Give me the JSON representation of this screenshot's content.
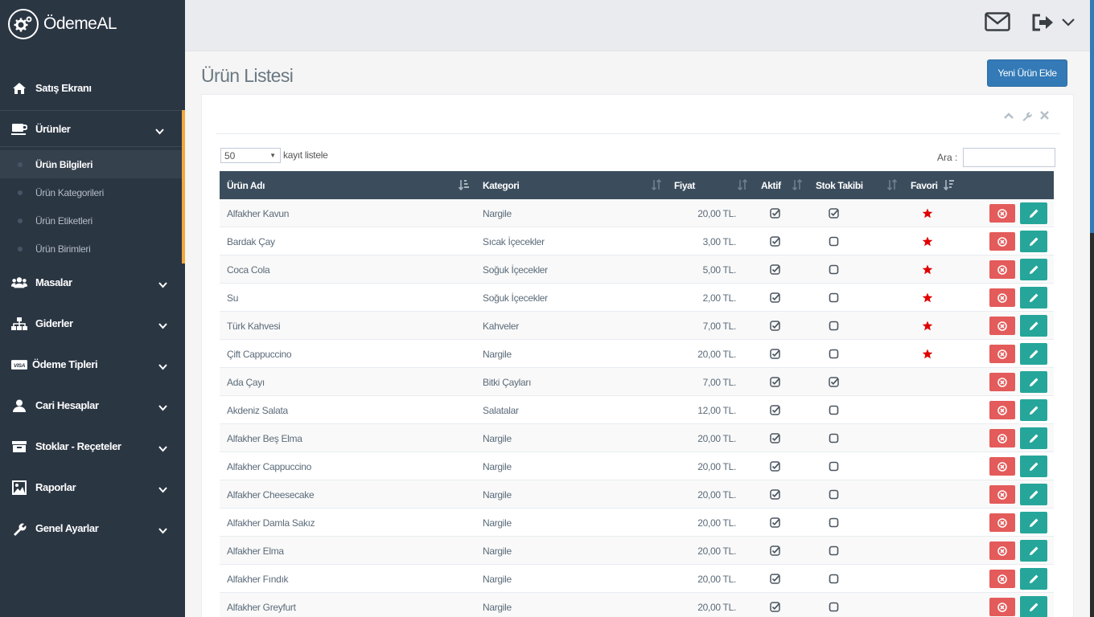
{
  "brand": {
    "name": "ÖdemeAL"
  },
  "sidebar": {
    "items": [
      {
        "label": "Satış Ekranı",
        "icon": "home-icon"
      },
      {
        "label": "Ürünler",
        "icon": "coffee-icon"
      },
      {
        "label": "Masalar",
        "icon": "users-icon"
      },
      {
        "label": "Giderler",
        "icon": "sitemap-icon"
      },
      {
        "label": "Ödeme Tipleri",
        "icon": "visa-icon"
      },
      {
        "label": "Cari Hesaplar",
        "icon": "user-icon"
      },
      {
        "label": "Stoklar - Reçeteler",
        "icon": "archive-icon"
      },
      {
        "label": "Raporlar",
        "icon": "image-icon"
      },
      {
        "label": "Genel Ayarlar",
        "icon": "wrench-icon"
      }
    ],
    "subitems": [
      {
        "label": "Ürün Bilgileri",
        "active": true
      },
      {
        "label": "Ürün Kategorileri",
        "active": false
      },
      {
        "label": "Ürün Etiketleri",
        "active": false
      },
      {
        "label": "Ürün Birimleri",
        "active": false
      }
    ],
    "accent_color": "#f3a83b"
  },
  "main": {
    "title": "Ürün Listesi",
    "new_button": "Yeni Ürün Ekle",
    "length_value": "50",
    "length_label": "kayıt listele",
    "search_label": "Ara :",
    "search_value": ""
  },
  "table": {
    "columns": [
      "Ürün Adı",
      "Kategori",
      "Fiyat",
      "Aktif",
      "Stok Takibi",
      "Favori"
    ],
    "rows": [
      {
        "name": "Alfakher Kavun",
        "category": "Nargile",
        "price": "20,00 TL.",
        "aktif": true,
        "stok": true,
        "favori": true
      },
      {
        "name": "Bardak Çay",
        "category": "Sıcak İçecekler",
        "price": "3,00 TL.",
        "aktif": true,
        "stok": false,
        "favori": true
      },
      {
        "name": "Coca Cola",
        "category": "Soğuk İçecekler",
        "price": "5,00 TL.",
        "aktif": true,
        "stok": false,
        "favori": true
      },
      {
        "name": "Su",
        "category": "Soğuk İçecekler",
        "price": "2,00 TL.",
        "aktif": true,
        "stok": false,
        "favori": true
      },
      {
        "name": "Türk Kahvesi",
        "category": "Kahveler",
        "price": "7,00 TL.",
        "aktif": true,
        "stok": false,
        "favori": true
      },
      {
        "name": "Çift Cappuccino",
        "category": "Nargile",
        "price": "20,00 TL.",
        "aktif": true,
        "stok": false,
        "favori": true
      },
      {
        "name": "Ada Çayı",
        "category": "Bitki Çayları",
        "price": "7,00 TL.",
        "aktif": true,
        "stok": true,
        "favori": false
      },
      {
        "name": "Akdeniz Salata",
        "category": "Salatalar",
        "price": "12,00 TL.",
        "aktif": true,
        "stok": false,
        "favori": false
      },
      {
        "name": "Alfakher Beş Elma",
        "category": "Nargile",
        "price": "20,00 TL.",
        "aktif": true,
        "stok": false,
        "favori": false
      },
      {
        "name": "Alfakher Cappuccino",
        "category": "Nargile",
        "price": "20,00 TL.",
        "aktif": true,
        "stok": false,
        "favori": false
      },
      {
        "name": "Alfakher Cheesecake",
        "category": "Nargile",
        "price": "20,00 TL.",
        "aktif": true,
        "stok": false,
        "favori": false
      },
      {
        "name": "Alfakher Damla Sakız",
        "category": "Nargile",
        "price": "20,00 TL.",
        "aktif": true,
        "stok": false,
        "favori": false
      },
      {
        "name": "Alfakher Elma",
        "category": "Nargile",
        "price": "20,00 TL.",
        "aktif": true,
        "stok": false,
        "favori": false
      },
      {
        "name": "Alfakher Fındık",
        "category": "Nargile",
        "price": "20,00 TL.",
        "aktif": true,
        "stok": false,
        "favori": false
      },
      {
        "name": "Alfakher Greyfurt",
        "category": "Nargile",
        "price": "20,00 TL.",
        "aktif": true,
        "stok": false,
        "favori": false
      }
    ],
    "header_color": "#3b4d5d",
    "delete_color": "#e35b5a",
    "edit_color": "#26a69a",
    "favorite_color": "#e00000"
  }
}
